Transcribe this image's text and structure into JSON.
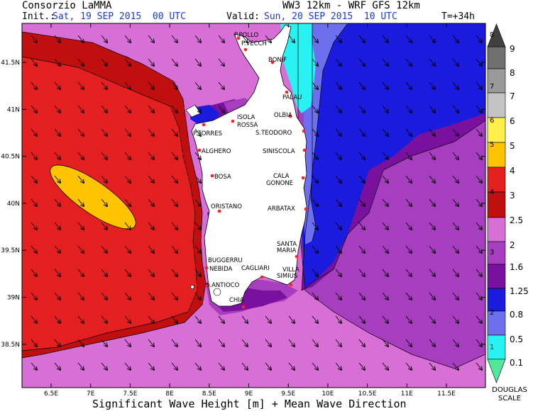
{
  "header": {
    "org": "Consorzio LaMMA",
    "model": "WW3 12km - WRF GFS 12km",
    "init_label": "Init.:",
    "init_value": "Sat, 19 SEP 2015  00 UTC",
    "valid_label": "Valid:",
    "valid_value": "Sun, 20 SEP 2015  10 UTC",
    "lead": "T=+34h"
  },
  "caption": "Significant Wave Height [m] + Mean Wave Direction",
  "axes": {
    "lon_ticks": [
      "6.5E",
      "7E",
      "7.5E",
      "8E",
      "8.5E",
      "9E",
      "9.5E",
      "10E",
      "10.5E",
      "11E",
      "11.5E"
    ],
    "lat_ticks": [
      "41.5N",
      "41N",
      "40.5N",
      "40N",
      "39.5N",
      "39N",
      "38.5N"
    ]
  },
  "places": [
    "P.POLLO",
    "P.VECCH",
    "BONIF",
    "PALAU",
    "OLBIA",
    "ISOLA",
    "ROSSA",
    "P.TORRES",
    "S.TEODORO",
    "ALGHERO",
    "SINISCOLA",
    "BOSA",
    "CALA",
    "GONONE",
    "ORISTANO",
    "ARBATAX",
    "SANTA",
    "MARIA",
    "BUGGERRU",
    "NEBIDA",
    "CAGLIARI",
    "VILLA",
    "SIMIUS",
    "S.ANTIOCO",
    "CHIA"
  ],
  "scale": {
    "wave_labels": [
      "9",
      "8",
      "7",
      "6",
      "5",
      "4",
      "3",
      "2.5",
      "2",
      "1.6",
      "1.25",
      "0.8",
      "0.5",
      "0.1"
    ],
    "douglas_labels": [
      "8",
      "7",
      "6",
      "5",
      "4",
      "3",
      "2",
      "1"
    ],
    "douglas_caption_1": "DOUGLAS",
    "douglas_caption_2": "SCALE",
    "colors": {
      "grey_top": "#404040",
      "grey_8": "#707070",
      "grey_7": "#9a9a9a",
      "grey_6": "#c4c4c4",
      "yellow_5": "#ffef4a",
      "orange_4": "#ffc300",
      "red_3": "#e41f1f",
      "darkred_25": "#c10f0f",
      "pink_2": "#d86fd6",
      "purple_16": "#a63ebf",
      "violet_125": "#7a119e",
      "blue_08": "#1b1bdd",
      "lightblue_05": "#6c70ee",
      "cyan_01": "#28f2f2",
      "green_bottom": "#53e69c"
    }
  }
}
